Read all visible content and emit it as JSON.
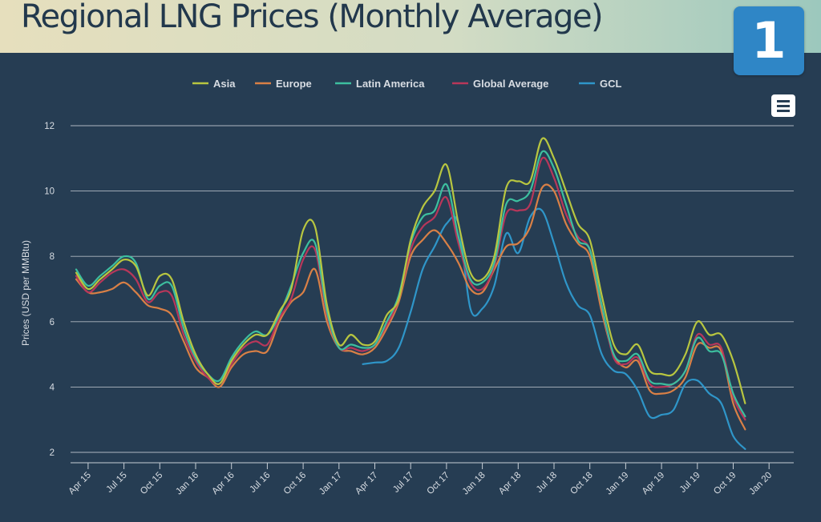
{
  "header": {
    "title": "Regional LNG Prices (Monthly Average)",
    "badge": "1"
  },
  "menu_icon": "hamburger-menu-icon",
  "colors": {
    "background": "#263d53",
    "gridline": "#c7ced6",
    "badge": "#2f86c6"
  },
  "chart_data": {
    "type": "line",
    "title": "",
    "ylabel": "Prices (USD per MMBtu)",
    "xlabel": "",
    "ylim": [
      1.5,
      12.5
    ],
    "yticks": [
      2,
      4,
      6,
      8,
      10,
      12
    ],
    "grid": true,
    "legend_position": "top",
    "x_tick_labels": [
      "Apr 15",
      "Jul 15",
      "Oct 15",
      "Jan 16",
      "Apr 16",
      "Jul 16",
      "Oct 16",
      "Jan 17",
      "Apr 17",
      "Jul 17",
      "Oct 17",
      "Jan 18",
      "Apr 18",
      "Jul 18",
      "Oct 18",
      "Jan 19",
      "Apr 19",
      "Jul 19",
      "Oct 19",
      "Jan 20"
    ],
    "x_start": "2015-03",
    "series": [
      {
        "name": "Asia",
        "color": "#b8c640",
        "values": [
          [
            0,
            7.5
          ],
          [
            1,
            7.0
          ],
          [
            2,
            7.3
          ],
          [
            3,
            7.6
          ],
          [
            4,
            7.9
          ],
          [
            5,
            7.7
          ],
          [
            6,
            6.8
          ],
          [
            7,
            7.4
          ],
          [
            8,
            7.3
          ],
          [
            9,
            6.0
          ],
          [
            10,
            5.0
          ],
          [
            11,
            4.4
          ],
          [
            12,
            4.1
          ],
          [
            13,
            4.8
          ],
          [
            14,
            5.3
          ],
          [
            15,
            5.6
          ],
          [
            16,
            5.6
          ],
          [
            17,
            6.3
          ],
          [
            18,
            7.0
          ],
          [
            19,
            8.8
          ],
          [
            20,
            8.9
          ],
          [
            21,
            6.5
          ],
          [
            22,
            5.3
          ],
          [
            23,
            5.6
          ],
          [
            24,
            5.3
          ],
          [
            25,
            5.4
          ],
          [
            26,
            6.2
          ],
          [
            27,
            6.7
          ],
          [
            28,
            8.5
          ],
          [
            29,
            9.5
          ],
          [
            30,
            10.0
          ],
          [
            31,
            10.8
          ],
          [
            32,
            9.0
          ],
          [
            33,
            7.5
          ],
          [
            34,
            7.3
          ],
          [
            35,
            8.0
          ],
          [
            36,
            10.1
          ],
          [
            37,
            10.3
          ],
          [
            38,
            10.3
          ],
          [
            39,
            11.6
          ],
          [
            40,
            11.0
          ],
          [
            41,
            10.0
          ],
          [
            42,
            9.0
          ],
          [
            43,
            8.5
          ],
          [
            44,
            6.8
          ],
          [
            45,
            5.3
          ],
          [
            46,
            5.0
          ],
          [
            47,
            5.3
          ],
          [
            48,
            4.5
          ],
          [
            49,
            4.4
          ],
          [
            50,
            4.4
          ],
          [
            51,
            5.0
          ],
          [
            52,
            6.0
          ],
          [
            53,
            5.6
          ],
          [
            54,
            5.6
          ],
          [
            55,
            4.8
          ],
          [
            56,
            3.5
          ]
        ]
      },
      {
        "name": "Europe",
        "color": "#d98046",
        "values": [
          [
            0,
            7.3
          ],
          [
            1,
            6.9
          ],
          [
            2,
            6.9
          ],
          [
            3,
            7.0
          ],
          [
            4,
            7.2
          ],
          [
            5,
            6.9
          ],
          [
            6,
            6.5
          ],
          [
            7,
            6.4
          ],
          [
            8,
            6.2
          ],
          [
            9,
            5.4
          ],
          [
            10,
            4.6
          ],
          [
            11,
            4.3
          ],
          [
            12,
            4.0
          ],
          [
            13,
            4.6
          ],
          [
            14,
            5.0
          ],
          [
            15,
            5.1
          ],
          [
            16,
            5.1
          ],
          [
            17,
            6.0
          ],
          [
            18,
            6.6
          ],
          [
            19,
            6.9
          ],
          [
            20,
            7.6
          ],
          [
            21,
            6.0
          ],
          [
            22,
            5.2
          ],
          [
            23,
            5.1
          ],
          [
            24,
            5.0
          ],
          [
            25,
            5.2
          ],
          [
            26,
            5.8
          ],
          [
            27,
            6.6
          ],
          [
            28,
            8.0
          ],
          [
            29,
            8.5
          ],
          [
            30,
            8.8
          ],
          [
            31,
            8.4
          ],
          [
            32,
            7.8
          ],
          [
            33,
            7.0
          ],
          [
            34,
            6.9
          ],
          [
            35,
            7.6
          ],
          [
            36,
            8.3
          ],
          [
            37,
            8.4
          ],
          [
            38,
            8.9
          ],
          [
            39,
            10.1
          ],
          [
            40,
            10.0
          ],
          [
            41,
            9.0
          ],
          [
            42,
            8.4
          ],
          [
            43,
            8.0
          ],
          [
            44,
            6.3
          ],
          [
            45,
            5.0
          ],
          [
            46,
            4.6
          ],
          [
            47,
            4.8
          ],
          [
            48,
            3.9
          ],
          [
            49,
            3.8
          ],
          [
            50,
            3.9
          ],
          [
            51,
            4.3
          ],
          [
            52,
            5.3
          ],
          [
            53,
            5.2
          ],
          [
            54,
            5.1
          ],
          [
            55,
            3.5
          ],
          [
            56,
            2.7
          ]
        ]
      },
      {
        "name": "Latin America",
        "color": "#3dbf9f",
        "values": [
          [
            0,
            7.6
          ],
          [
            1,
            7.1
          ],
          [
            2,
            7.4
          ],
          [
            3,
            7.7
          ],
          [
            4,
            8.0
          ],
          [
            5,
            7.8
          ],
          [
            6,
            6.7
          ],
          [
            7,
            7.1
          ],
          [
            8,
            7.1
          ],
          [
            9,
            5.8
          ],
          [
            10,
            4.9
          ],
          [
            11,
            4.4
          ],
          [
            12,
            4.2
          ],
          [
            13,
            4.9
          ],
          [
            14,
            5.4
          ],
          [
            15,
            5.7
          ],
          [
            16,
            5.6
          ],
          [
            17,
            6.2
          ],
          [
            18,
            7.1
          ],
          [
            19,
            8.1
          ],
          [
            20,
            8.4
          ],
          [
            21,
            6.3
          ],
          [
            22,
            5.2
          ],
          [
            23,
            5.3
          ],
          [
            24,
            5.2
          ],
          [
            25,
            5.3
          ],
          [
            26,
            6.0
          ],
          [
            27,
            6.8
          ],
          [
            28,
            8.4
          ],
          [
            29,
            9.2
          ],
          [
            30,
            9.4
          ],
          [
            31,
            10.2
          ],
          [
            32,
            8.6
          ],
          [
            33,
            7.3
          ],
          [
            34,
            7.2
          ],
          [
            35,
            7.8
          ],
          [
            36,
            9.6
          ],
          [
            37,
            9.7
          ],
          [
            38,
            10.0
          ],
          [
            39,
            11.2
          ],
          [
            40,
            10.7
          ],
          [
            41,
            9.6
          ],
          [
            42,
            8.5
          ],
          [
            43,
            8.2
          ],
          [
            44,
            6.5
          ],
          [
            45,
            5.0
          ],
          [
            46,
            4.8
          ],
          [
            47,
            5.0
          ],
          [
            48,
            4.2
          ],
          [
            49,
            4.1
          ],
          [
            50,
            4.1
          ],
          [
            51,
            4.5
          ],
          [
            52,
            5.5
          ],
          [
            53,
            5.1
          ],
          [
            54,
            5.0
          ],
          [
            55,
            3.8
          ],
          [
            56,
            3.1
          ]
        ]
      },
      {
        "name": "Global Average",
        "color": "#b8375a",
        "values": [
          [
            0,
            7.4
          ],
          [
            1,
            6.9
          ],
          [
            2,
            7.2
          ],
          [
            3,
            7.5
          ],
          [
            4,
            7.6
          ],
          [
            5,
            7.3
          ],
          [
            6,
            6.6
          ],
          [
            7,
            6.9
          ],
          [
            8,
            6.8
          ],
          [
            9,
            5.6
          ],
          [
            10,
            4.8
          ],
          [
            11,
            4.3
          ],
          [
            12,
            4.1
          ],
          [
            13,
            4.7
          ],
          [
            14,
            5.2
          ],
          [
            15,
            5.4
          ],
          [
            16,
            5.3
          ],
          [
            17,
            6.1
          ],
          [
            18,
            6.7
          ],
          [
            19,
            7.9
          ],
          [
            20,
            8.2
          ],
          [
            21,
            6.2
          ],
          [
            22,
            5.2
          ],
          [
            23,
            5.2
          ],
          [
            24,
            5.1
          ],
          [
            25,
            5.3
          ],
          [
            26,
            5.9
          ],
          [
            27,
            6.7
          ],
          [
            28,
            8.2
          ],
          [
            29,
            8.9
          ],
          [
            30,
            9.2
          ],
          [
            31,
            9.8
          ],
          [
            32,
            8.4
          ],
          [
            33,
            7.2
          ],
          [
            34,
            7.0
          ],
          [
            35,
            7.7
          ],
          [
            36,
            9.3
          ],
          [
            37,
            9.4
          ],
          [
            38,
            9.6
          ],
          [
            39,
            11.0
          ],
          [
            40,
            10.4
          ],
          [
            41,
            9.3
          ],
          [
            42,
            8.6
          ],
          [
            43,
            8.2
          ],
          [
            44,
            6.5
          ],
          [
            45,
            4.9
          ],
          [
            46,
            4.7
          ],
          [
            47,
            4.9
          ],
          [
            48,
            4.1
          ],
          [
            49,
            4.0
          ],
          [
            50,
            4.1
          ],
          [
            51,
            4.5
          ],
          [
            52,
            5.6
          ],
          [
            53,
            5.3
          ],
          [
            54,
            5.2
          ],
          [
            55,
            3.7
          ],
          [
            56,
            3.0
          ]
        ]
      },
      {
        "name": "GCL",
        "color": "#2f96c9",
        "values": [
          [
            24,
            4.7
          ],
          [
            25,
            4.75
          ],
          [
            26,
            4.8
          ],
          [
            27,
            5.2
          ],
          [
            28,
            6.3
          ],
          [
            29,
            7.6
          ],
          [
            30,
            8.3
          ],
          [
            31,
            9.0
          ],
          [
            32,
            9.0
          ],
          [
            33,
            6.4
          ],
          [
            34,
            6.4
          ],
          [
            35,
            7.1
          ],
          [
            36,
            8.7
          ],
          [
            37,
            8.1
          ],
          [
            38,
            9.2
          ],
          [
            39,
            9.4
          ],
          [
            40,
            8.4
          ],
          [
            41,
            7.2
          ],
          [
            42,
            6.5
          ],
          [
            43,
            6.2
          ],
          [
            44,
            5.0
          ],
          [
            45,
            4.5
          ],
          [
            46,
            4.4
          ],
          [
            47,
            3.9
          ],
          [
            48,
            3.1
          ],
          [
            49,
            3.15
          ],
          [
            50,
            3.3
          ],
          [
            51,
            4.1
          ],
          [
            52,
            4.2
          ],
          [
            53,
            3.8
          ],
          [
            54,
            3.5
          ],
          [
            55,
            2.5
          ],
          [
            56,
            2.1
          ]
        ]
      }
    ]
  }
}
